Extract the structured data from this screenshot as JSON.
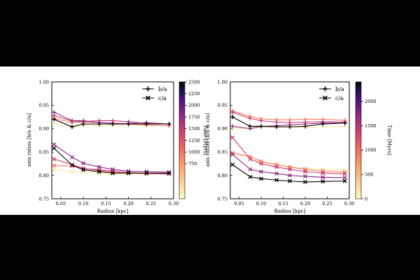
{
  "chart_data": [
    {
      "type": "line",
      "panel": "left",
      "xlabel": "Radius [kpc]",
      "ylabel": "axis ratios [b/a & c/a]",
      "xlim": [
        0.03,
        0.3
      ],
      "ylim": [
        0.75,
        1.0
      ],
      "xticks": [
        "0.05",
        "0.10",
        "0.15",
        "0.20",
        "0.25",
        "0.30"
      ],
      "yticks": [
        "0.75",
        "0.80",
        "0.85",
        "0.90",
        "0.95",
        "1.00"
      ],
      "legend": {
        "position": "top-right",
        "entries": [
          {
            "label": "b/a",
            "marker": "plus"
          },
          {
            "label": "c/a",
            "marker": "x"
          }
        ]
      },
      "colorbar": {
        "label": "Time [Myrs]",
        "range": [
          0,
          2500
        ],
        "ticks": [
          "750",
          "1000",
          "1250",
          "1500",
          "1750",
          "2000",
          "2250",
          "2500"
        ]
      },
      "x": [
        0.035,
        0.075,
        0.1,
        0.135,
        0.165,
        0.2,
        0.24,
        0.29
      ],
      "series": [
        {
          "name": "b/a 250 Myrs",
          "color": "#fbe6a8",
          "values": [
            0.91,
            0.903,
            0.907,
            0.906,
            0.906,
            0.907,
            0.906,
            0.907
          ]
        },
        {
          "name": "b/a 900 Myrs",
          "color": "#f7795d",
          "values": [
            0.922,
            0.913,
            0.914,
            0.913,
            0.912,
            0.91,
            0.908,
            0.906
          ]
        },
        {
          "name": "b/a 1400 Myrs",
          "color": "#c73a73",
          "values": [
            0.928,
            0.916,
            0.915,
            0.917,
            0.917,
            0.915,
            0.911,
            0.91
          ]
        },
        {
          "name": "b/a 1800 Myrs",
          "color": "#8c2a82",
          "values": [
            0.935,
            0.917,
            0.917,
            0.913,
            0.911,
            0.911,
            0.913,
            0.91
          ]
        },
        {
          "name": "b/a 2500 Myrs",
          "color": "#000004",
          "values": [
            0.92,
            0.904,
            0.91,
            0.91,
            0.91,
            0.91,
            0.91,
            0.91
          ]
        },
        {
          "name": "c/a 250 Myrs",
          "color": "#fbe6a8",
          "values": [
            0.812,
            0.808,
            0.806,
            0.804,
            0.803,
            0.803,
            0.803,
            0.804
          ]
        },
        {
          "name": "c/a 900 Myrs",
          "color": "#f7795d",
          "values": [
            0.821,
            0.82,
            0.815,
            0.81,
            0.807,
            0.805,
            0.804,
            0.804
          ]
        },
        {
          "name": "c/a 1400 Myrs",
          "color": "#c73a73",
          "values": [
            0.835,
            0.823,
            0.815,
            0.812,
            0.809,
            0.806,
            0.804,
            0.803
          ]
        },
        {
          "name": "c/a 1800 Myrs",
          "color": "#8c2a82",
          "values": [
            0.866,
            0.839,
            0.826,
            0.818,
            0.813,
            0.809,
            0.808,
            0.807
          ]
        },
        {
          "name": "c/a 2500 Myrs",
          "color": "#000004",
          "values": [
            0.858,
            0.822,
            0.812,
            0.808,
            0.805,
            0.805,
            0.805,
            0.805
          ]
        }
      ]
    },
    {
      "type": "line",
      "panel": "right",
      "xlabel": "Radius [kpc]",
      "ylabel": "axis ratios [b/a & c/a]",
      "xlim": [
        0.03,
        0.3
      ],
      "ylim": [
        0.75,
        1.0
      ],
      "xticks": [
        "0.05",
        "0.10",
        "0.15",
        "0.20",
        "0.25",
        "0.30"
      ],
      "yticks": [
        "0.75",
        "0.80",
        "0.85",
        "0.90",
        "0.95",
        "1.00"
      ],
      "legend": {
        "position": "top-right",
        "entries": [
          {
            "label": "b/a",
            "marker": "plus"
          },
          {
            "label": "c/a",
            "marker": "x"
          }
        ]
      },
      "colorbar": {
        "label": "Time [Myrs]",
        "range": [
          0,
          2400
        ],
        "ticks": [
          "0",
          "500",
          "1000",
          "1500",
          "2000"
        ]
      },
      "x": [
        0.035,
        0.075,
        0.1,
        0.135,
        0.165,
        0.2,
        0.24,
        0.29
      ],
      "series": [
        {
          "name": "b/a 100 Myrs",
          "color": "#fbe6a8",
          "values": [
            0.898,
            0.902,
            0.903,
            0.903,
            0.903,
            0.903,
            0.904,
            0.905
          ]
        },
        {
          "name": "b/a 700 Myrs",
          "color": "#f7795d",
          "values": [
            0.938,
            0.926,
            0.921,
            0.919,
            0.919,
            0.92,
            0.92,
            0.918
          ]
        },
        {
          "name": "b/a 1300 Myrs",
          "color": "#c73a73",
          "values": [
            0.935,
            0.922,
            0.917,
            0.914,
            0.913,
            0.914,
            0.915,
            0.914
          ]
        },
        {
          "name": "b/a 1800 Myrs",
          "color": "#8c2a82",
          "values": [
            0.905,
            0.9,
            0.905,
            0.906,
            0.908,
            0.91,
            0.912,
            0.912
          ]
        },
        {
          "name": "b/a 2400 Myrs",
          "color": "#000004",
          "values": [
            0.925,
            0.905,
            0.905,
            0.904,
            0.904,
            0.905,
            0.91,
            0.912
          ]
        },
        {
          "name": "c/a 100 Myrs",
          "color": "#fbe6a8",
          "values": [
            0.848,
            0.835,
            0.828,
            0.822,
            0.818,
            0.815,
            0.813,
            0.812
          ]
        },
        {
          "name": "c/a 700 Myrs",
          "color": "#f7795d",
          "values": [
            0.848,
            0.84,
            0.83,
            0.823,
            0.818,
            0.813,
            0.809,
            0.807
          ]
        },
        {
          "name": "c/a 1300 Myrs",
          "color": "#c73a73",
          "values": [
            0.881,
            0.835,
            0.825,
            0.818,
            0.813,
            0.808,
            0.805,
            0.803
          ]
        },
        {
          "name": "c/a 1800 Myrs",
          "color": "#8c2a82",
          "values": [
            0.845,
            0.813,
            0.808,
            0.804,
            0.8,
            0.798,
            0.796,
            0.795
          ]
        },
        {
          "name": "c/a 2400 Myrs",
          "color": "#000004",
          "values": [
            0.823,
            0.797,
            0.793,
            0.79,
            0.788,
            0.786,
            0.787,
            0.788
          ]
        }
      ]
    }
  ]
}
